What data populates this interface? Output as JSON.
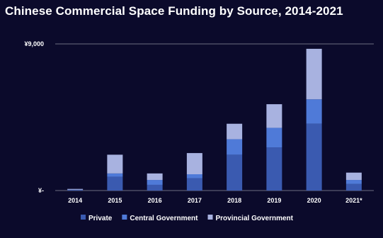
{
  "title": "Chinese Commercial Space Funding by Source, 2014-2021",
  "colors": {
    "background": "#0b0a2b",
    "gridline": "#6e6e80",
    "text": "#ffffff"
  },
  "chart_data": {
    "type": "bar",
    "stacked": true,
    "title": "Chinese Commercial Space Funding by Source, 2014-2021",
    "xlabel": "",
    "ylabel": "",
    "ylim": [
      0,
      9000
    ],
    "y_ticks": [
      {
        "value": 0,
        "label": "¥-"
      },
      {
        "value": 9000,
        "label": "¥9,000"
      }
    ],
    "grid": true,
    "legend_position": "bottom",
    "categories": [
      "2014",
      "2015",
      "2016",
      "2017",
      "2018",
      "2019",
      "2020",
      "2021*"
    ],
    "series": [
      {
        "name": "Private",
        "color": "#3a5ab0",
        "values": [
          50,
          850,
          350,
          750,
          2200,
          2650,
          4100,
          400
        ]
      },
      {
        "name": "Central Government",
        "color": "#4f7ad8",
        "values": [
          0,
          200,
          300,
          250,
          950,
          1200,
          1500,
          250
        ]
      },
      {
        "name": "Provincial Government",
        "color": "#a8b2e0",
        "values": [
          50,
          1150,
          400,
          1300,
          950,
          1450,
          3100,
          450
        ]
      }
    ]
  }
}
